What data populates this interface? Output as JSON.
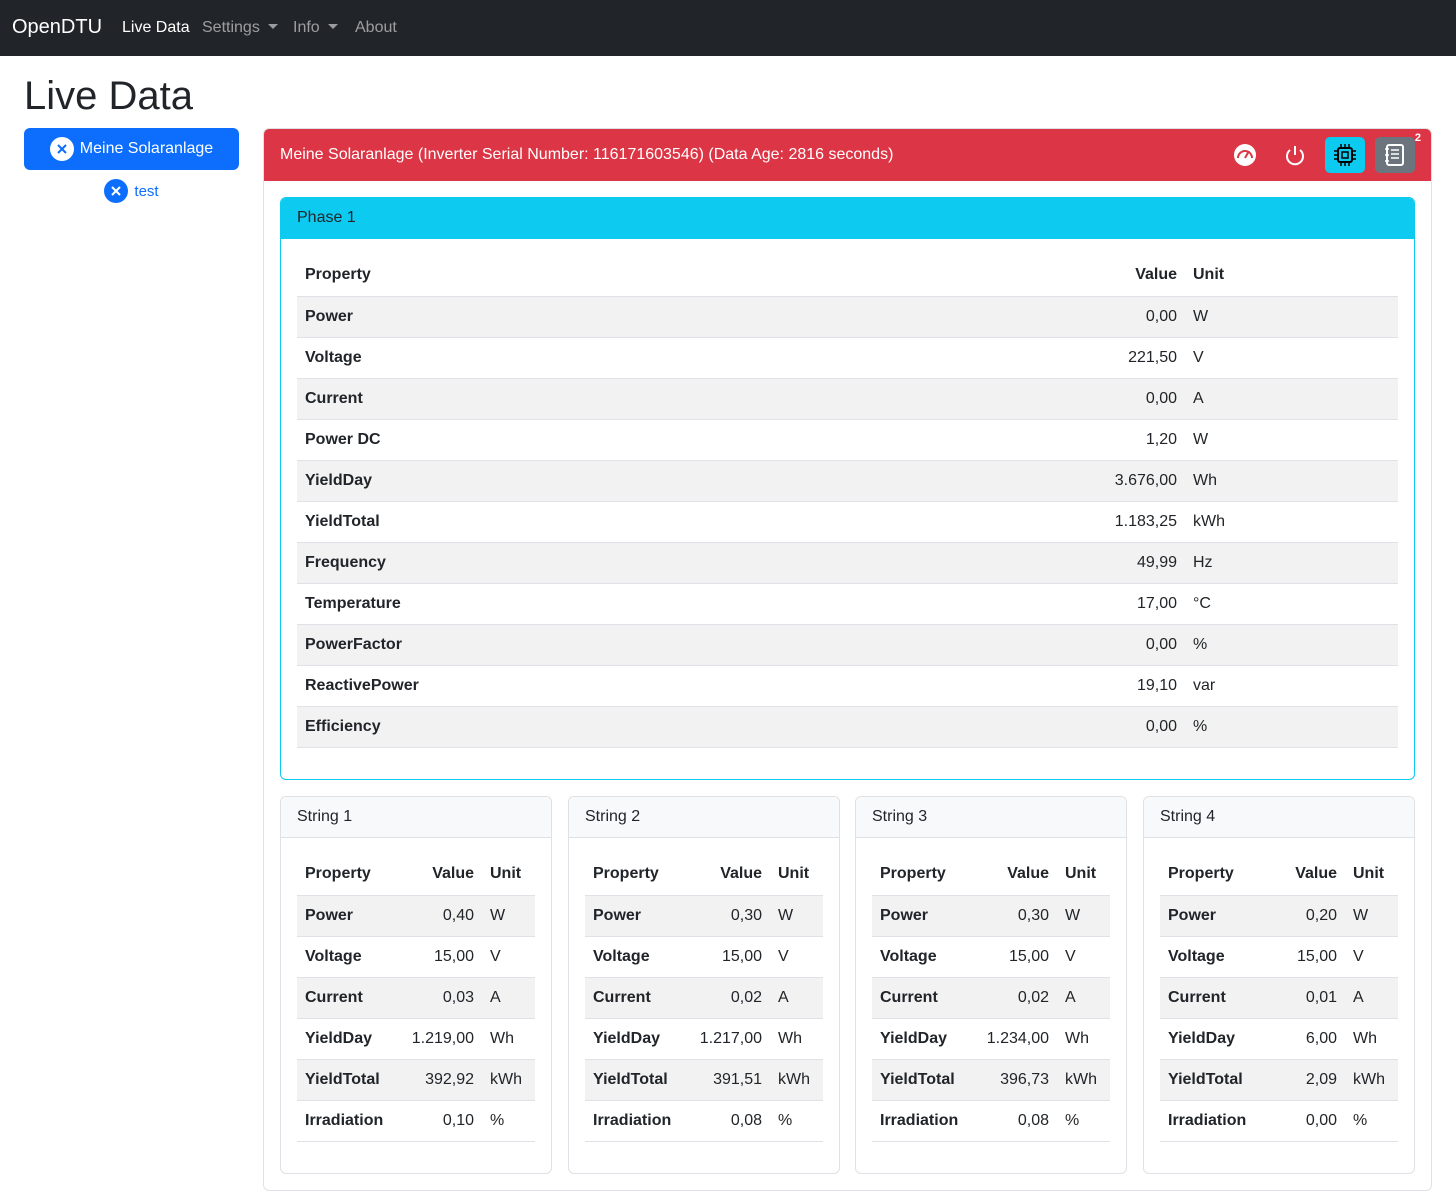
{
  "navbar": {
    "brand": "OpenDTU",
    "items": [
      "Live Data",
      "Settings",
      "Info",
      "About"
    ]
  },
  "page_title": "Live Data",
  "inverters": [
    "Meine Solaranlage",
    "test"
  ],
  "inverter_card": {
    "title": "Meine Solaranlage (Inverter Serial Number: 116171603546) (Data Age: 2816 seconds)",
    "badge": "2"
  },
  "table_headers": [
    "Property",
    "Value",
    "Unit"
  ],
  "phase": {
    "title": "Phase 1",
    "rows": [
      [
        "Power",
        "0,00",
        "W"
      ],
      [
        "Voltage",
        "221,50",
        "V"
      ],
      [
        "Current",
        "0,00",
        "A"
      ],
      [
        "Power DC",
        "1,20",
        "W"
      ],
      [
        "YieldDay",
        "3.676,00",
        "Wh"
      ],
      [
        "YieldTotal",
        "1.183,25",
        "kWh"
      ],
      [
        "Frequency",
        "49,99",
        "Hz"
      ],
      [
        "Temperature",
        "17,00",
        "°C"
      ],
      [
        "PowerFactor",
        "0,00",
        "%"
      ],
      [
        "ReactivePower",
        "19,10",
        "var"
      ],
      [
        "Efficiency",
        "0,00",
        "%"
      ]
    ]
  },
  "strings": [
    {
      "title": "String 1",
      "rows": [
        [
          "Power",
          "0,40",
          "W"
        ],
        [
          "Voltage",
          "15,00",
          "V"
        ],
        [
          "Current",
          "0,03",
          "A"
        ],
        [
          "YieldDay",
          "1.219,00",
          "Wh"
        ],
        [
          "YieldTotal",
          "392,92",
          "kWh"
        ],
        [
          "Irradiation",
          "0,10",
          "%"
        ]
      ]
    },
    {
      "title": "String 2",
      "rows": [
        [
          "Power",
          "0,30",
          "W"
        ],
        [
          "Voltage",
          "15,00",
          "V"
        ],
        [
          "Current",
          "0,02",
          "A"
        ],
        [
          "YieldDay",
          "1.217,00",
          "Wh"
        ],
        [
          "YieldTotal",
          "391,51",
          "kWh"
        ],
        [
          "Irradiation",
          "0,08",
          "%"
        ]
      ]
    },
    {
      "title": "String 3",
      "rows": [
        [
          "Power",
          "0,30",
          "W"
        ],
        [
          "Voltage",
          "15,00",
          "V"
        ],
        [
          "Current",
          "0,02",
          "A"
        ],
        [
          "YieldDay",
          "1.234,00",
          "Wh"
        ],
        [
          "YieldTotal",
          "396,73",
          "kWh"
        ],
        [
          "Irradiation",
          "0,08",
          "%"
        ]
      ]
    },
    {
      "title": "String 4",
      "rows": [
        [
          "Power",
          "0,20",
          "W"
        ],
        [
          "Voltage",
          "15,00",
          "V"
        ],
        [
          "Current",
          "0,01",
          "A"
        ],
        [
          "YieldDay",
          "6,00",
          "Wh"
        ],
        [
          "YieldTotal",
          "2,09",
          "kWh"
        ],
        [
          "Irradiation",
          "0,00",
          "%"
        ]
      ]
    }
  ]
}
